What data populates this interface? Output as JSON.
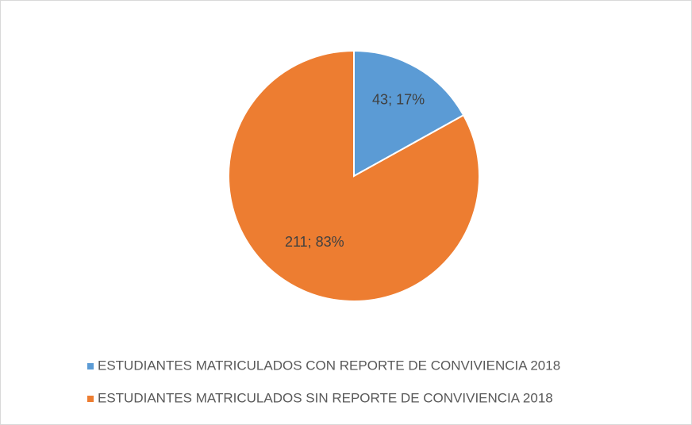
{
  "chart_data": {
    "type": "pie",
    "categories": [
      "ESTUDIANTES MATRICULADOS CON REPORTE DE CONVIVIENCIA 2018",
      "ESTUDIANTES MATRICULADOS SIN REPORTE DE CONVIVIENCIA 2018"
    ],
    "values": [
      43,
      211
    ],
    "value_labels": [
      "43; 17%",
      "211; 83%"
    ],
    "colors": [
      "#5b9bd5",
      "#ed7d31"
    ],
    "legend": "bottom"
  }
}
